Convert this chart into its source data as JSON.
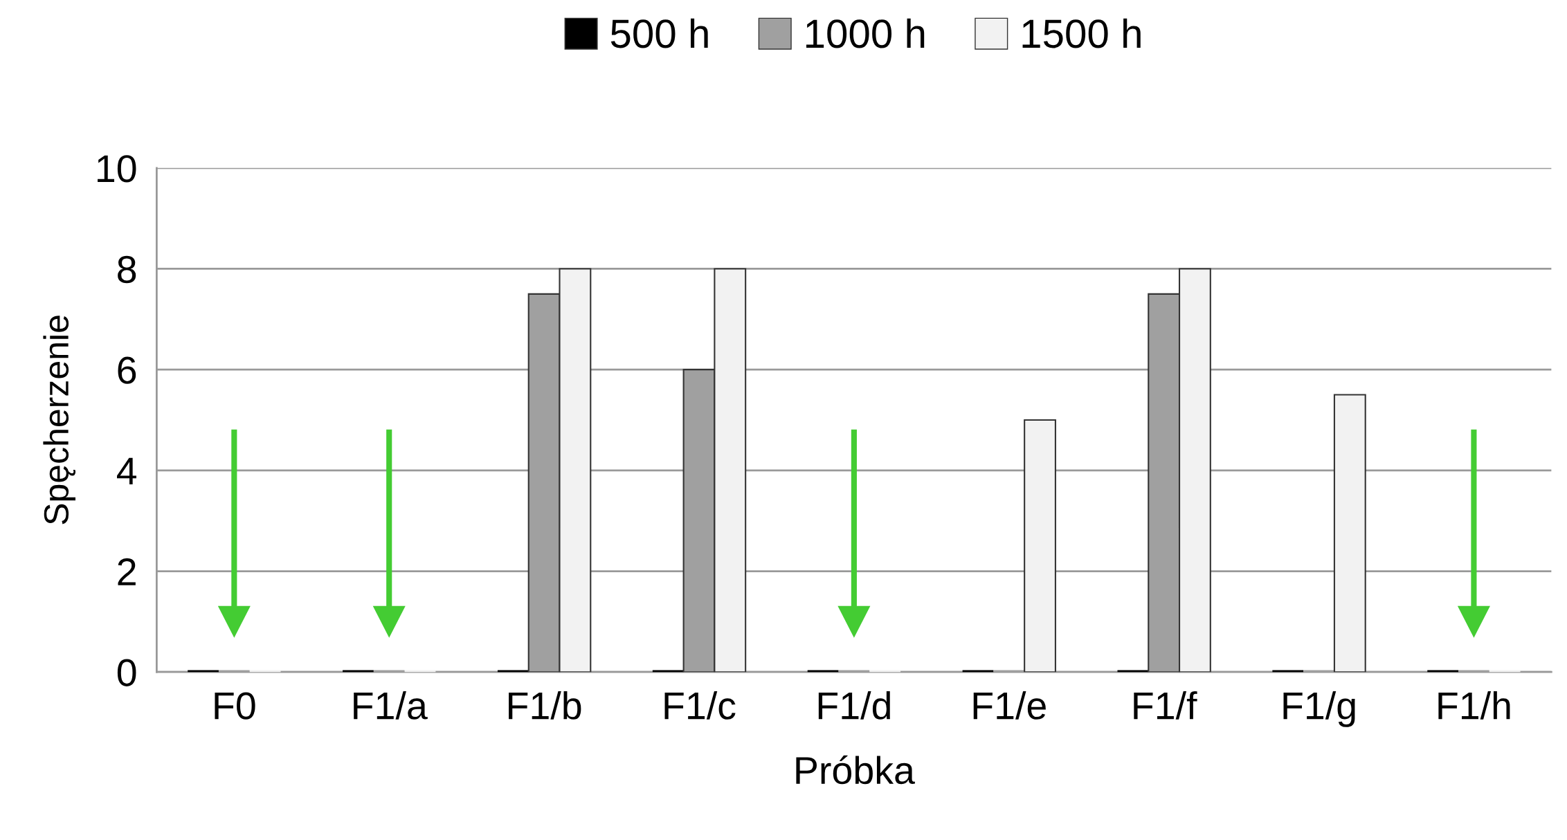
{
  "chart_data": {
    "type": "bar",
    "xlabel": "Próbka",
    "ylabel": "Spęcherzenie",
    "categories": [
      "F0",
      "F1/a",
      "F1/b",
      "F1/c",
      "F1/d",
      "F1/e",
      "F1/f",
      "F1/g",
      "F1/h"
    ],
    "series": [
      {
        "name": "500 h",
        "color": "#000000",
        "values": [
          0,
          0,
          0,
          0,
          0,
          0,
          0,
          0,
          0
        ]
      },
      {
        "name": "1000 h",
        "color": "#a0a0a0",
        "values": [
          0,
          0,
          7.5,
          6,
          0,
          0,
          7.5,
          0,
          0
        ]
      },
      {
        "name": "1500 h",
        "color": "#f2f2f2",
        "values": [
          0,
          0,
          8,
          8,
          0,
          5,
          8,
          5.5,
          0
        ]
      }
    ],
    "ylim": [
      0,
      10
    ],
    "yticks": [
      0,
      2,
      4,
      6,
      8,
      10
    ],
    "grid": "y",
    "legend": "top"
  }
}
